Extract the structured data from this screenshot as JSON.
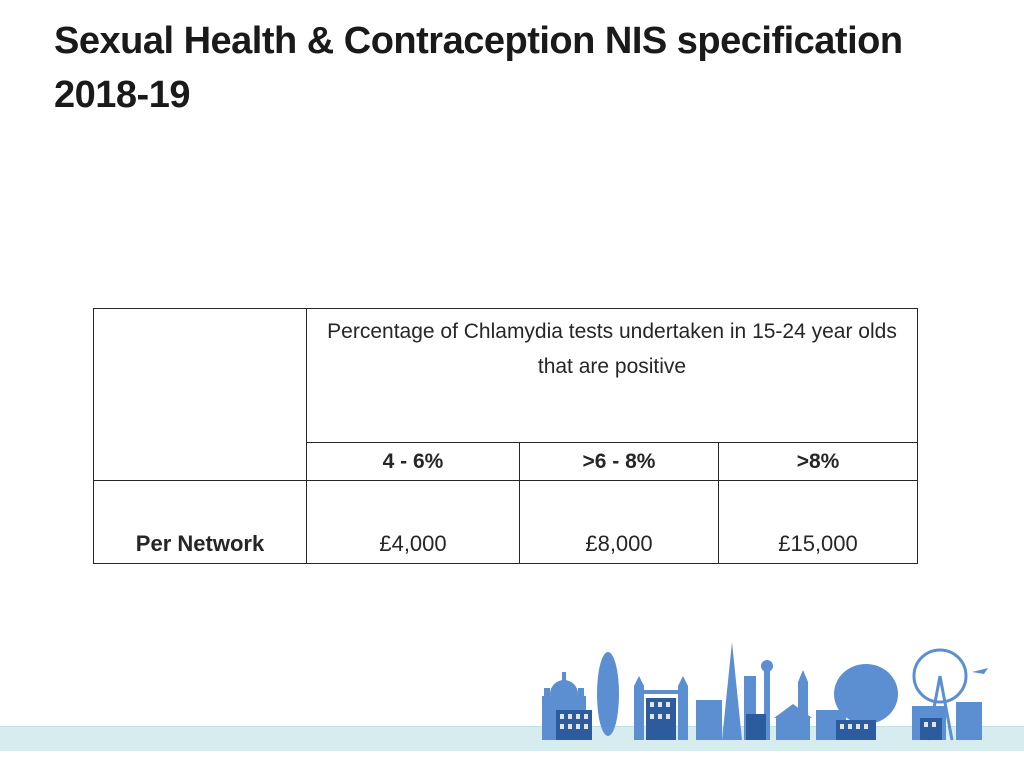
{
  "slide": {
    "title": "Sexual Health & Contraception NIS specification 2018-19"
  },
  "table": {
    "header": "Percentage of Chlamydia tests undertaken in 15-24 year olds that are positive",
    "columns": [
      "4 - 6%",
      ">6 - 8%",
      ">8%"
    ],
    "rows": [
      {
        "label": "Per Network",
        "values": [
          "£4,000",
          "£8,000",
          "£15,000"
        ]
      }
    ]
  },
  "decoration": {
    "skyline_color": "#5b8fd1",
    "band_color": "#d7ecef"
  }
}
